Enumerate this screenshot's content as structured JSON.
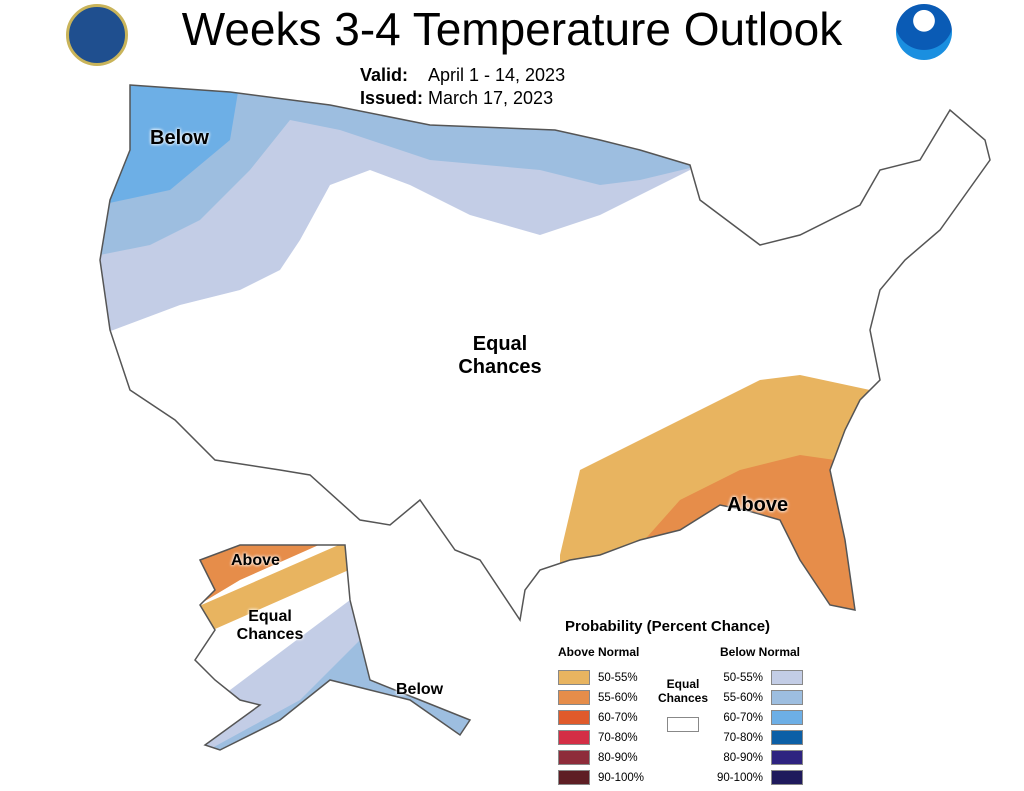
{
  "title": "Weeks 3-4 Temperature Outlook",
  "valid_label": "Valid:",
  "valid": "April 1 - 14, 2023",
  "issued_label": "Issued:",
  "issued": "March 17, 2023",
  "logos": [
    "department-of-commerce-seal",
    "noaa-logo"
  ],
  "map_labels": {
    "conus_below": "Below",
    "conus_equal": "Equal Chances",
    "conus_above": "Above",
    "ak_above": "Above",
    "ak_equal": "Equal Chances",
    "ak_below": "Below"
  },
  "legend": {
    "title": "Probability (Percent Chance)",
    "above_header": "Above Normal",
    "below_header": "Below Normal",
    "equal": "Equal Chances",
    "above": [
      {
        "range": "50-55%",
        "color": "#E8B460"
      },
      {
        "range": "55-60%",
        "color": "#E68D4A"
      },
      {
        "range": "60-70%",
        "color": "#E05A2B"
      },
      {
        "range": "70-80%",
        "color": "#D42E45"
      },
      {
        "range": "80-90%",
        "color": "#8E2C3A"
      },
      {
        "range": "90-100%",
        "color": "#5E1E24"
      }
    ],
    "below": [
      {
        "range": "50-55%",
        "color": "#C3CDE6"
      },
      {
        "range": "55-60%",
        "color": "#9DBEE0"
      },
      {
        "range": "60-70%",
        "color": "#6DAFE6"
      },
      {
        "range": "70-80%",
        "color": "#0C5FA6"
      },
      {
        "range": "80-90%",
        "color": "#2E2380"
      },
      {
        "range": "90-100%",
        "color": "#1F1A5C"
      }
    ]
  }
}
